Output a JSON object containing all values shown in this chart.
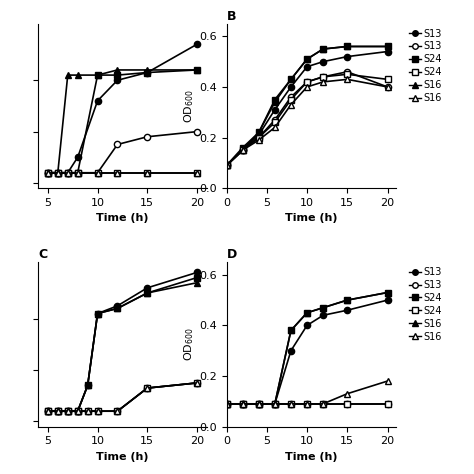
{
  "panels": {
    "A": {
      "title": "",
      "xlabel": "Time (h)",
      "ylabel": "",
      "xlim": [
        4,
        21
      ],
      "ylim": [
        -0.02,
        0.62
      ],
      "xticks": [
        5,
        10,
        15,
        20
      ],
      "yticks": [
        0.0,
        0.2,
        0.4
      ],
      "show_ytick_labels": false,
      "series": [
        {
          "marker": "o",
          "filled": true,
          "x": [
            5,
            6,
            7,
            8,
            10,
            12,
            15,
            20
          ],
          "y": [
            0.04,
            0.04,
            0.04,
            0.1,
            0.32,
            0.4,
            0.43,
            0.54
          ]
        },
        {
          "marker": "o",
          "filled": false,
          "x": [
            5,
            6,
            7,
            8,
            10,
            12,
            15,
            20
          ],
          "y": [
            0.04,
            0.04,
            0.04,
            0.04,
            0.04,
            0.15,
            0.18,
            0.2
          ]
        },
        {
          "marker": "s",
          "filled": true,
          "x": [
            5,
            6,
            7,
            8,
            10,
            12,
            15,
            20
          ],
          "y": [
            0.04,
            0.04,
            0.04,
            0.04,
            0.42,
            0.42,
            0.43,
            0.44
          ]
        },
        {
          "marker": "s",
          "filled": false,
          "x": [
            5,
            6,
            7,
            8,
            10,
            12,
            15,
            20
          ],
          "y": [
            0.04,
            0.04,
            0.04,
            0.04,
            0.04,
            0.04,
            0.04,
            0.04
          ]
        },
        {
          "marker": "^",
          "filled": true,
          "x": [
            5,
            6,
            7,
            8,
            10,
            12,
            15,
            20
          ],
          "y": [
            0.04,
            0.04,
            0.42,
            0.42,
            0.42,
            0.44,
            0.44,
            0.44
          ]
        },
        {
          "marker": "^",
          "filled": false,
          "x": [
            5,
            6,
            7,
            8,
            10,
            12,
            15,
            20
          ],
          "y": [
            0.04,
            0.04,
            0.04,
            0.04,
            0.04,
            0.04,
            0.04,
            0.04
          ]
        }
      ]
    },
    "B": {
      "title": "B",
      "xlabel": "Time (h)",
      "ylabel": "OD$_{600}$",
      "xlim": [
        0,
        21
      ],
      "ylim": [
        0.0,
        0.65
      ],
      "xticks": [
        0,
        5,
        10,
        15,
        20
      ],
      "yticks": [
        0.0,
        0.2,
        0.4,
        0.6
      ],
      "show_ytick_labels": true,
      "series": [
        {
          "marker": "o",
          "filled": true,
          "x": [
            0,
            2,
            4,
            6,
            8,
            10,
            12,
            15,
            20
          ],
          "y": [
            0.09,
            0.15,
            0.21,
            0.31,
            0.4,
            0.48,
            0.5,
            0.52,
            0.54
          ]
        },
        {
          "marker": "o",
          "filled": false,
          "x": [
            0,
            2,
            4,
            6,
            8,
            10,
            12,
            15,
            20
          ],
          "y": [
            0.09,
            0.15,
            0.2,
            0.27,
            0.36,
            0.42,
            0.44,
            0.46,
            0.4
          ]
        },
        {
          "marker": "s",
          "filled": true,
          "x": [
            0,
            2,
            4,
            6,
            8,
            10,
            12,
            15,
            20
          ],
          "y": [
            0.09,
            0.16,
            0.22,
            0.35,
            0.43,
            0.51,
            0.55,
            0.56,
            0.56
          ]
        },
        {
          "marker": "s",
          "filled": false,
          "x": [
            0,
            2,
            4,
            6,
            8,
            10,
            12,
            15,
            20
          ],
          "y": [
            0.09,
            0.15,
            0.2,
            0.26,
            0.35,
            0.42,
            0.44,
            0.45,
            0.43
          ]
        },
        {
          "marker": "^",
          "filled": true,
          "x": [
            0,
            2,
            4,
            6,
            8,
            10,
            12,
            15,
            20
          ],
          "y": [
            0.09,
            0.15,
            0.22,
            0.34,
            0.43,
            0.51,
            0.55,
            0.56,
            0.56
          ]
        },
        {
          "marker": "^",
          "filled": false,
          "x": [
            0,
            2,
            4,
            6,
            8,
            10,
            12,
            15,
            20
          ],
          "y": [
            0.09,
            0.15,
            0.19,
            0.24,
            0.33,
            0.4,
            0.42,
            0.43,
            0.4
          ]
        }
      ]
    },
    "C": {
      "title": "C",
      "xlabel": "Time (h)",
      "ylabel": "",
      "xlim": [
        4,
        21
      ],
      "ylim": [
        -0.02,
        0.62
      ],
      "xticks": [
        5,
        10,
        15,
        20
      ],
      "yticks": [
        0.0,
        0.2,
        0.4
      ],
      "show_ytick_labels": false,
      "series": [
        {
          "marker": "o",
          "filled": true,
          "x": [
            5,
            6,
            7,
            8,
            9,
            10,
            12,
            15,
            20
          ],
          "y": [
            0.04,
            0.04,
            0.04,
            0.04,
            0.14,
            0.42,
            0.45,
            0.52,
            0.58
          ]
        },
        {
          "marker": "o",
          "filled": false,
          "x": [
            5,
            6,
            7,
            8,
            9,
            10,
            12,
            15,
            20
          ],
          "y": [
            0.04,
            0.04,
            0.04,
            0.04,
            0.04,
            0.04,
            0.04,
            0.13,
            0.15
          ]
        },
        {
          "marker": "s",
          "filled": true,
          "x": [
            5,
            6,
            7,
            8,
            9,
            10,
            12,
            15,
            20
          ],
          "y": [
            0.04,
            0.04,
            0.04,
            0.04,
            0.14,
            0.42,
            0.44,
            0.5,
            0.56
          ]
        },
        {
          "marker": "s",
          "filled": false,
          "x": [
            5,
            6,
            7,
            8,
            9,
            10,
            12,
            15,
            20
          ],
          "y": [
            0.04,
            0.04,
            0.04,
            0.04,
            0.04,
            0.04,
            0.04,
            0.13,
            0.15
          ]
        },
        {
          "marker": "^",
          "filled": true,
          "x": [
            5,
            6,
            7,
            8,
            9,
            10,
            12,
            15,
            20
          ],
          "y": [
            0.04,
            0.04,
            0.04,
            0.04,
            0.14,
            0.42,
            0.44,
            0.5,
            0.54
          ]
        },
        {
          "marker": "^",
          "filled": false,
          "x": [
            5,
            6,
            7,
            8,
            9,
            10,
            12,
            15,
            20
          ],
          "y": [
            0.04,
            0.04,
            0.04,
            0.04,
            0.04,
            0.04,
            0.04,
            0.13,
            0.15
          ]
        }
      ]
    },
    "D": {
      "title": "D",
      "xlabel": "Time (h)",
      "ylabel": "OD$_{600}$",
      "xlim": [
        0,
        21
      ],
      "ylim": [
        0.0,
        0.65
      ],
      "xticks": [
        0,
        5,
        10,
        15,
        20
      ],
      "yticks": [
        0.0,
        0.2,
        0.4,
        0.6
      ],
      "show_ytick_labels": true,
      "series": [
        {
          "marker": "o",
          "filled": true,
          "x": [
            0,
            2,
            4,
            6,
            8,
            10,
            12,
            15,
            20
          ],
          "y": [
            0.09,
            0.09,
            0.09,
            0.09,
            0.3,
            0.4,
            0.44,
            0.46,
            0.5
          ]
        },
        {
          "marker": "o",
          "filled": false,
          "x": [
            0,
            2,
            4,
            6,
            8,
            10,
            12,
            15,
            20
          ],
          "y": [
            0.09,
            0.09,
            0.09,
            0.09,
            0.09,
            0.09,
            0.09,
            0.09,
            0.09
          ]
        },
        {
          "marker": "s",
          "filled": true,
          "x": [
            0,
            2,
            4,
            6,
            8,
            10,
            12,
            15,
            20
          ],
          "y": [
            0.09,
            0.09,
            0.09,
            0.09,
            0.38,
            0.45,
            0.47,
            0.5,
            0.53
          ]
        },
        {
          "marker": "s",
          "filled": false,
          "x": [
            0,
            2,
            4,
            6,
            8,
            10,
            12,
            15,
            20
          ],
          "y": [
            0.09,
            0.09,
            0.09,
            0.09,
            0.09,
            0.09,
            0.09,
            0.09,
            0.09
          ]
        },
        {
          "marker": "^",
          "filled": true,
          "x": [
            0,
            2,
            4,
            6,
            8,
            10,
            12,
            15,
            20
          ],
          "y": [
            0.09,
            0.09,
            0.09,
            0.09,
            0.38,
            0.45,
            0.47,
            0.5,
            0.53
          ]
        },
        {
          "marker": "^",
          "filled": false,
          "x": [
            0,
            2,
            4,
            6,
            8,
            10,
            12,
            15,
            20
          ],
          "y": [
            0.09,
            0.09,
            0.09,
            0.09,
            0.09,
            0.09,
            0.09,
            0.13,
            0.18
          ]
        }
      ]
    }
  },
  "legend_labels": [
    "S13",
    "S13",
    "S24",
    "S24",
    "S16",
    "S16"
  ],
  "legend_filled": [
    true,
    false,
    true,
    false,
    true,
    false
  ],
  "legend_markers": [
    "o",
    "o",
    "s",
    "s",
    "^",
    "^"
  ],
  "line_color": "black",
  "markersize": 4.5,
  "linewidth": 1.2
}
